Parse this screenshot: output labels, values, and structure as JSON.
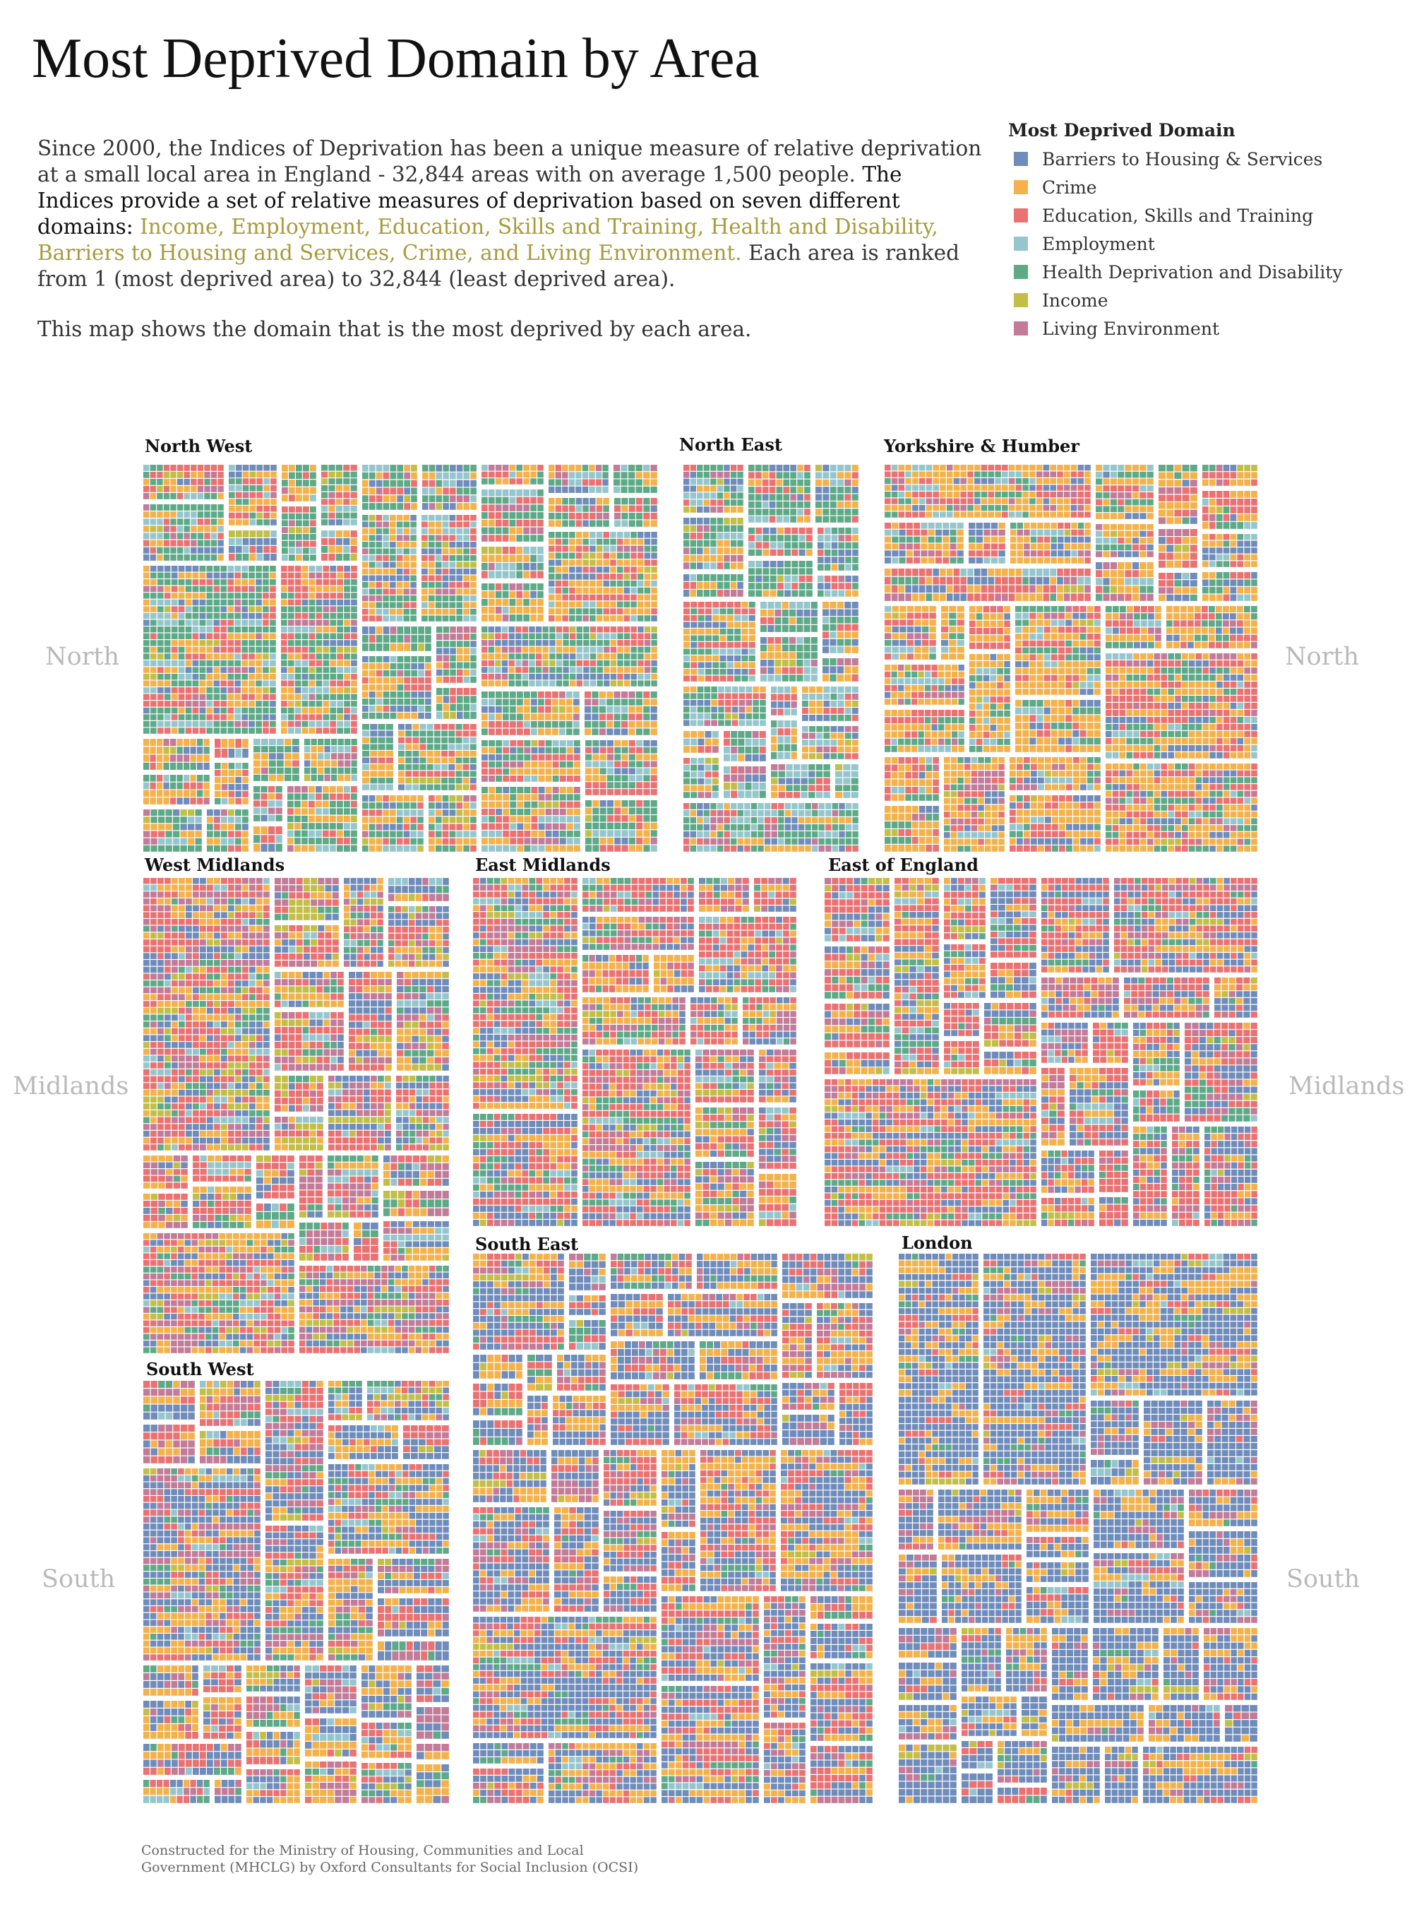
{
  "title": "Most Deprived Domain by Area",
  "intro": {
    "p1_a": "Since 2000, the Indices of Deprivation has been a unique measure of relative deprivation at a small local area in England - 32,844 areas with on average 1,500 people.",
    "p1_b": "The Indices provide a set of relative measures of deprivation based on seven different domains:",
    "p1_domains": "Income, Employment, Education, Skills and Training, Health and Disability, Barriers to Housing and Services, Crime, and Living Environment.",
    "p1_c": "Each area is ranked from 1 (most deprived area) to 32,844 (least deprived area).",
    "p2": "This map shows the domain that is the most deprived by each area."
  },
  "legend": {
    "title": "Most Deprived Domain",
    "items": [
      {
        "label": "Barriers to Housing & Services",
        "color": "#6f8cba"
      },
      {
        "label": "Crime",
        "color": "#f3b24c"
      },
      {
        "label": "Education, Skills and Training",
        "color": "#ea7272"
      },
      {
        "label": "Employment",
        "color": "#96c6cd"
      },
      {
        "label": "Health Deprivation and Disability",
        "color": "#5ea987"
      },
      {
        "label": "Income",
        "color": "#c2be47"
      },
      {
        "label": "Living Environment",
        "color": "#c27b98"
      }
    ]
  },
  "side_labels": {
    "north_left": "North",
    "north_right": "North",
    "midlands_left": "Midlands",
    "midlands_right": "Midlands",
    "south_left": "South",
    "south_right": "South"
  },
  "footer": {
    "line1": "Constructed for the Ministry of Housing, Communities and Local",
    "line2": "Government (MHCLG) by Oxford Consultants for Social Inclusion (OCSI)"
  },
  "chart_data": {
    "type": "treemap",
    "unit": "share of small areas whose most deprived domain is each domain (approximate)",
    "domains": [
      "Barriers to Housing & Services",
      "Crime",
      "Education, Skills and Training",
      "Employment",
      "Health Deprivation and Disability",
      "Income",
      "Living Environment"
    ],
    "regions": [
      {
        "name": "North West",
        "domain_mix": [
          0.08,
          0.22,
          0.18,
          0.12,
          0.32,
          0.03,
          0.05
        ]
      },
      {
        "name": "North East",
        "domain_mix": [
          0.12,
          0.15,
          0.14,
          0.2,
          0.3,
          0.03,
          0.06
        ]
      },
      {
        "name": "Yorkshire & Humber",
        "domain_mix": [
          0.1,
          0.38,
          0.24,
          0.07,
          0.12,
          0.02,
          0.07
        ]
      },
      {
        "name": "West Midlands",
        "domain_mix": [
          0.14,
          0.18,
          0.28,
          0.08,
          0.1,
          0.08,
          0.14
        ]
      },
      {
        "name": "East Midlands",
        "domain_mix": [
          0.16,
          0.2,
          0.3,
          0.07,
          0.12,
          0.03,
          0.12
        ]
      },
      {
        "name": "East of England",
        "domain_mix": [
          0.2,
          0.18,
          0.35,
          0.05,
          0.08,
          0.03,
          0.11
        ]
      },
      {
        "name": "South East",
        "domain_mix": [
          0.38,
          0.22,
          0.2,
          0.03,
          0.05,
          0.02,
          0.1
        ]
      },
      {
        "name": "London",
        "domain_mix": [
          0.55,
          0.22,
          0.06,
          0.02,
          0.02,
          0.03,
          0.1
        ]
      },
      {
        "name": "South West",
        "domain_mix": [
          0.32,
          0.22,
          0.18,
          0.05,
          0.08,
          0.03,
          0.12
        ]
      }
    ]
  }
}
